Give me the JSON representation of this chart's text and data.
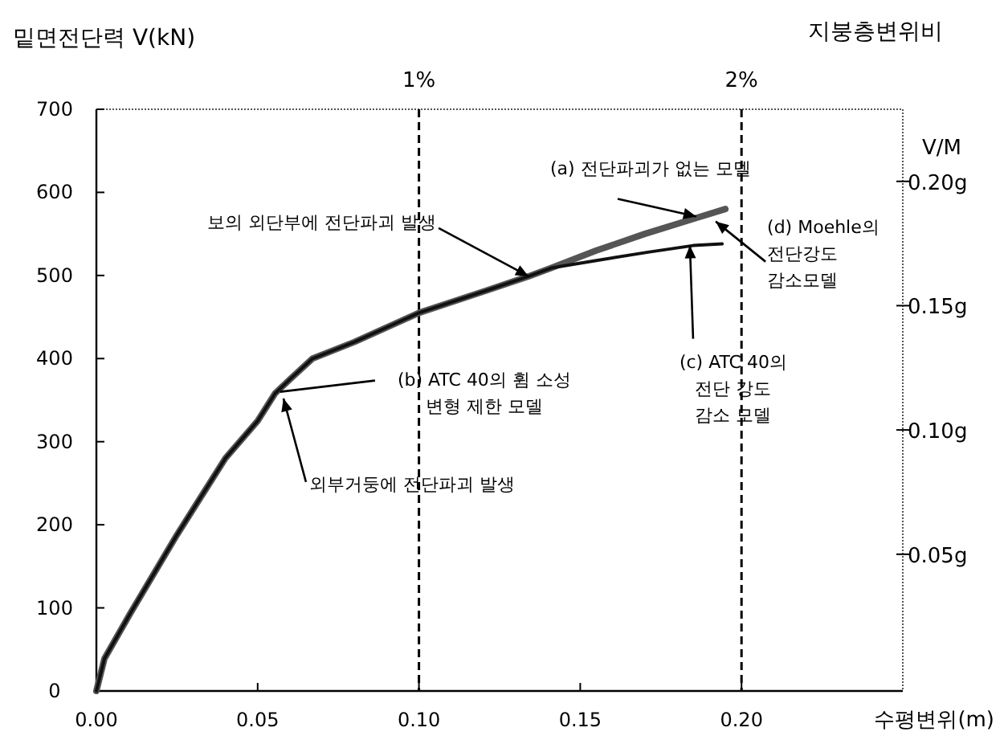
{
  "chart_data": {
    "type": "line",
    "xlabel": "수평변위(m)",
    "ylabel": "밑면전단력 V(kN)",
    "y2label": "V/M",
    "x2label": "지붕층변위비",
    "xlim": [
      0,
      0.25
    ],
    "xticks": [
      {
        "value": 0,
        "label": "0.00"
      },
      {
        "value": 0.05,
        "label": "0.05"
      },
      {
        "value": 0.1,
        "label": "0.10"
      },
      {
        "value": 0.15,
        "label": "0.15"
      },
      {
        "value": 0.2,
        "label": "0.20"
      }
    ],
    "ylim": [
      0,
      700
    ],
    "yticks": [
      0,
      100,
      200,
      300,
      400,
      500,
      600,
      700
    ],
    "y2lim": [
      -0.005,
      0.229
    ],
    "y2ticks": [
      {
        "value": 0.05,
        "label": "0.05g"
      },
      {
        "value": 0.1,
        "label": "0.10g"
      },
      {
        "value": 0.15,
        "label": "0.15g"
      },
      {
        "value": 0.2,
        "label": "0.20g"
      }
    ],
    "x2lim": [
      0,
      2.5
    ],
    "x2ticks": [
      {
        "value": 1,
        "label": "1%"
      },
      {
        "value": 2,
        "label": "2%"
      }
    ],
    "series": [
      {
        "color": "#555555",
        "x": [
          0,
          0.0025,
          0.01,
          0.025,
          0.04,
          0.05,
          0.0554,
          0.06,
          0.067,
          0.08,
          0.1,
          0.121,
          0.134,
          0.141,
          0.155,
          0.17,
          0.185,
          0.195
        ],
        "values": [
          0,
          39,
          90,
          188,
          280,
          325,
          358,
          375,
          400,
          420,
          455,
          482,
          499,
          509,
          530,
          550,
          568,
          580
        ]
      },
      {
        "color": "#111111",
        "x": [
          0,
          0.0025,
          0.01,
          0.025,
          0.04,
          0.05,
          0.0554,
          0.06,
          0.067,
          0.08,
          0.1,
          0.121,
          0.134,
          0.141,
          0.155,
          0.171,
          0.185,
          0.194
        ],
        "values": [
          0,
          39,
          90,
          188,
          280,
          325,
          358,
          375,
          400,
          420,
          455,
          482,
          499,
          509,
          518,
          528,
          536,
          538
        ]
      }
    ],
    "ref_lines": [
      {
        "axis": "x",
        "value": 0.1,
        "color": "#000000",
        "line_style": "dashed"
      },
      {
        "axis": "x",
        "value": 0.2,
        "color": "#000000",
        "line_style": "dashed"
      }
    ],
    "annotations": [
      {
        "text": "보의 외단부에 전단파괴 발생",
        "x": 0.134,
        "y": 499
      },
      {
        "text": "(a) 전단파괴가 없는 모델",
        "x": 0.186,
        "y": 571
      },
      {
        "text": "(d) Moehle의\n전단강도\n감소모델",
        "x": 0.192,
        "y": 565
      },
      {
        "text": "(c) ATC 40의\n전단 강도\n감소 모델",
        "x": 0.184,
        "y": 536
      },
      {
        "text": "(b) ATC 40의 휨 소성\n변형 제한 모델",
        "x": 0.057,
        "y": 360
      },
      {
        "text": "외부거둥에 전단파괴 발생",
        "x": 0.058,
        "y": 352
      }
    ]
  }
}
